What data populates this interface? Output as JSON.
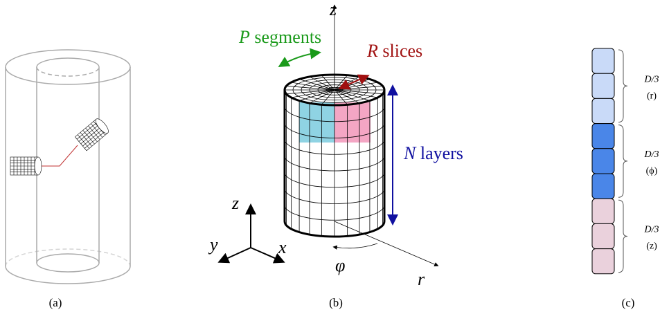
{
  "captions": [
    "(a)",
    "(b)",
    "(c)"
  ],
  "cylinder": {
    "axis_z": "z",
    "axis_r": "r",
    "angle": "φ",
    "segments_var": "P",
    "segments_text": "segments",
    "slices_var": "R",
    "slices_text": "slices",
    "layers_var": "N",
    "layers_text": "layers"
  },
  "frame": {
    "x": "x",
    "y": "y",
    "z": "z"
  },
  "embedding": [
    {
      "size": "D/3",
      "label": "(r)"
    },
    {
      "size": "D/3",
      "label": "(ϕ)"
    },
    {
      "size": "D/3",
      "label": "(z)"
    }
  ]
}
